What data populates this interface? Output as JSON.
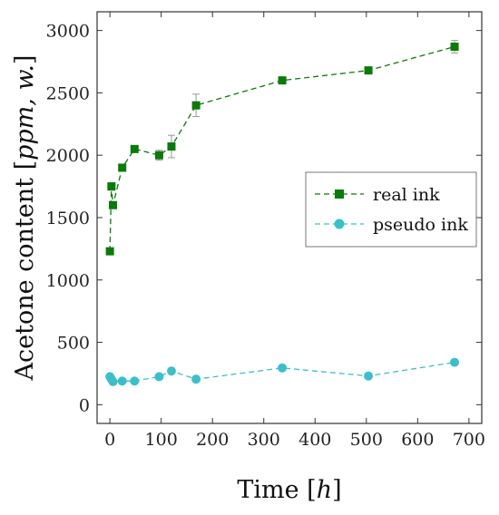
{
  "chart_data": {
    "type": "line",
    "title": "",
    "xlabel": {
      "main": "Time [",
      "unit": "h",
      "close": "]"
    },
    "ylabel": {
      "main": "Acetone content [",
      "unit": "ppm, w.",
      "close": "]"
    },
    "xlim": [
      -25,
      725
    ],
    "ylim": [
      -150,
      3150
    ],
    "xticks": [
      0,
      100,
      200,
      300,
      400,
      500,
      600,
      700
    ],
    "yticks": [
      0,
      500,
      1000,
      1500,
      2000,
      2500,
      3000
    ],
    "grid": false,
    "legend": {
      "placement": "center-right"
    },
    "series": [
      {
        "name": "real ink",
        "color": "#0a7a0a",
        "marker": "square",
        "line": "dashed",
        "x": [
          0,
          3,
          6,
          24,
          48,
          96,
          120,
          168,
          336,
          504,
          672
        ],
        "y": [
          1230,
          1750,
          1600,
          1900,
          2050,
          2000,
          2070,
          2400,
          2600,
          2680,
          2870
        ],
        "err": [
          20,
          30,
          25,
          25,
          20,
          40,
          90,
          90,
          15,
          15,
          50
        ]
      },
      {
        "name": "pseudo ink",
        "color": "#3cbfca",
        "marker": "circle",
        "line": "dashed",
        "x": [
          0,
          3,
          6,
          24,
          48,
          96,
          120,
          168,
          336,
          504,
          672
        ],
        "y": [
          225,
          205,
          185,
          190,
          190,
          225,
          270,
          205,
          295,
          230,
          340
        ],
        "err": [
          0,
          0,
          0,
          0,
          0,
          0,
          0,
          0,
          0,
          0,
          0
        ]
      }
    ]
  }
}
